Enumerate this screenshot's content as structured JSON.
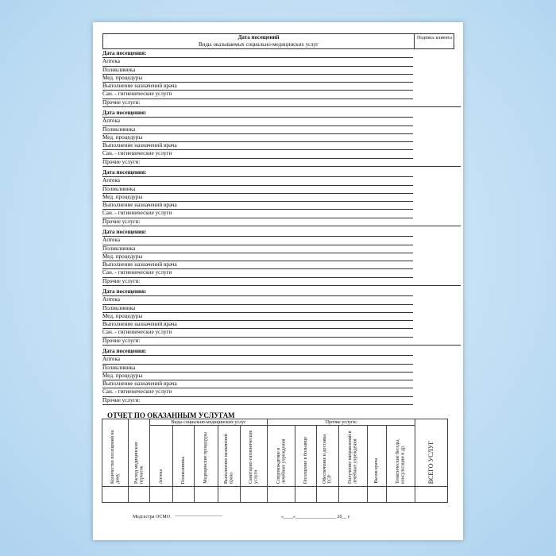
{
  "header": {
    "title": "Дата посещений",
    "subtitle": "Виды оказываемых социально-медицинских услуг",
    "signature": "Подпись клиента"
  },
  "visit_label": "Дата посещения:",
  "services": [
    "Аптека",
    "Поликлиника",
    "Мед. процедуры",
    "Выполнение назначений врача",
    "Сан. - гигиенические услуги",
    "Прочие услуги:"
  ],
  "report": {
    "title": "ОТЧЕТ ПО ОКАЗАННЫМ УСЛУГАМ",
    "group_medical": "Виды социально-медицинских услуг",
    "group_other": "Прочие услуги:",
    "columns": [
      "Количество посещений на дому",
      "Расход медицинских перчаток",
      "Аптека",
      "Поликлиника",
      "Медицинские процедуры",
      "Выполнение назначений врача",
      "Санитарно-гигиенические услуги",
      "Сопровождение в лечебные учреждения",
      "Посещение в больнице",
      "Обеспечение и доставка ТСР",
      "Получение направлений в лечебные учреждения",
      "Вызов врача",
      "Тематические беседы, консультации и др.",
      "ВСЕГО УСЛУГ"
    ]
  },
  "footer": {
    "nurse": "Медсестра ОСМО",
    "signature_line": "____________________",
    "date": "«____»_________________ 20__ г."
  }
}
